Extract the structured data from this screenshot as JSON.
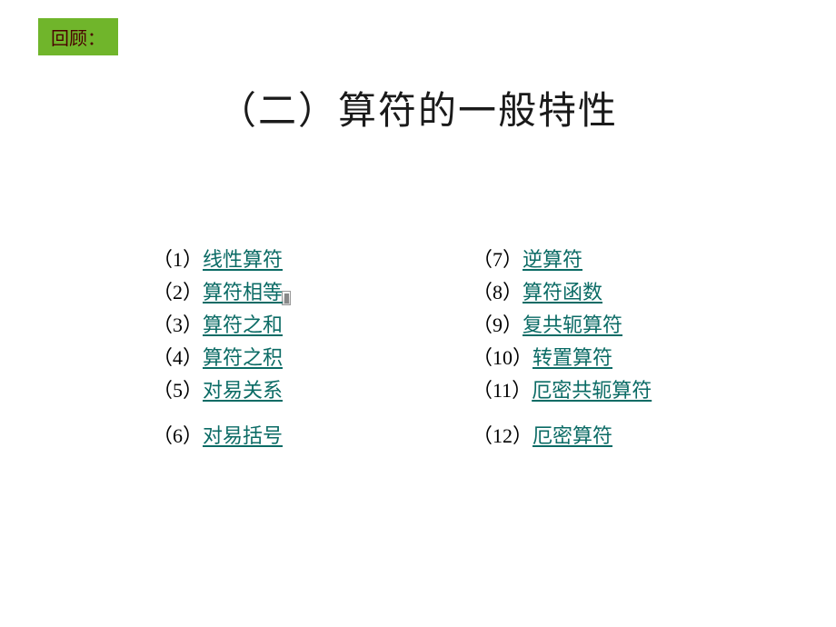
{
  "badge": "回顾：",
  "title": "（二）算符的一般特性",
  "left_items": [
    {
      "num": "（1）",
      "label": "线性算符",
      "link": true
    },
    {
      "num": "（2）",
      "label": "算符相等",
      "link": true
    },
    {
      "num": "（3）",
      "label": "算符之和",
      "link": true
    },
    {
      "num": "（4）",
      "label": "算符之积",
      "link": true
    },
    {
      "num": "（5）",
      "label": "对易关系",
      "link": true
    },
    {
      "num": "（6）",
      "label": "对易括号",
      "link": true,
      "gap_before": true
    }
  ],
  "right_items": [
    {
      "num": "（7）",
      "label": "逆算符",
      "link": true
    },
    {
      "num": "（8）",
      "label": "算符函数",
      "link": true
    },
    {
      "num": "（9）",
      "label": "复共轭算符",
      "link": true
    },
    {
      "num": "（10）",
      "label": "转置算符",
      "link": true
    },
    {
      "num": "（11）",
      "label": "厄密共轭算符",
      "link": true
    },
    {
      "num": "（12）",
      "label": "厄密算符",
      "link": true,
      "gap_before": true
    }
  ],
  "colors": {
    "badge_bg": "#70b52b",
    "badge_text": "#4a0000",
    "link_color": "#0b6b65",
    "text_color": "#000000",
    "background": "#ffffff"
  },
  "typography": {
    "badge_fontsize": 20,
    "title_fontsize": 42,
    "item_fontsize": 22,
    "item_lineheight": 36
  }
}
